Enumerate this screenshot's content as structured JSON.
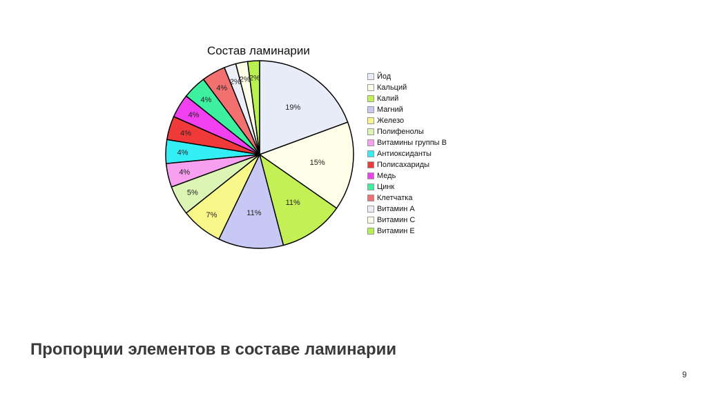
{
  "chart_data": {
    "type": "pie",
    "title": "Состав ламинарии",
    "slices": [
      {
        "label": "Йод",
        "value": 19,
        "display": "19%",
        "color": "#e8ecf8"
      },
      {
        "label": "Кальций",
        "value": 15,
        "display": "15%",
        "color": "#fdfde8"
      },
      {
        "label": "Калий",
        "value": 11,
        "display": "11%",
        "color": "#c3f054"
      },
      {
        "label": "Магний",
        "value": 11,
        "display": "11%",
        "color": "#c8c8f5"
      },
      {
        "label": "Железо",
        "value": 7,
        "display": "7%",
        "color": "#f7f78a"
      },
      {
        "label": "Полифенолы",
        "value": 5,
        "display": "5%",
        "color": "#dcf5b4"
      },
      {
        "label": "Витамины группы В",
        "value": 4,
        "display": "4%",
        "color": "#f8a0f0"
      },
      {
        "label": "Антиоксиданты",
        "value": 4,
        "display": "4%",
        "color": "#33eef5"
      },
      {
        "label": "Полисахариды",
        "value": 4,
        "display": "4%",
        "color": "#f03a3a"
      },
      {
        "label": "Медь",
        "value": 4,
        "display": "4%",
        "color": "#f040f0"
      },
      {
        "label": "Цинк",
        "value": 4,
        "display": "4%",
        "color": "#3cf0a0"
      },
      {
        "label": "Клетчатка",
        "value": 4,
        "display": "4%",
        "color": "#f27070"
      },
      {
        "label": "Витамин А",
        "value": 2,
        "display": "2%",
        "color": "#eceef8"
      },
      {
        "label": "Витамин С",
        "value": 2,
        "display": "2%",
        "color": "#fdfde8"
      },
      {
        "label": "Витамин Е",
        "value": 2,
        "display": "2%",
        "color": "#b8f050"
      }
    ],
    "legend_position": "right"
  },
  "slide": {
    "heading": "Пропорции элементов в составе ламинарии",
    "page_number": "9"
  }
}
